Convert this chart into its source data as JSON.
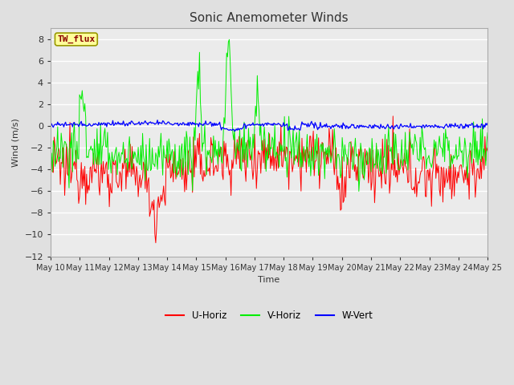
{
  "title": "Sonic Anemometer Winds",
  "xlabel": "Time",
  "ylabel": "Wind (m/s)",
  "ylim": [
    -12,
    9
  ],
  "yticks": [
    -12,
    -10,
    -8,
    -6,
    -4,
    -2,
    0,
    2,
    4,
    6,
    8
  ],
  "xtick_labels": [
    "May 10",
    "May 11",
    "May 12",
    "May 13",
    "May 14",
    "May 15",
    "May 16",
    "May 17",
    "May 18",
    "May 19",
    "May 20",
    "May 21",
    "May 22",
    "May 23",
    "May 24",
    "May 25"
  ],
  "colors": {
    "U": "#ff0000",
    "V": "#00ee00",
    "W": "#0000ff",
    "bg_outer": "#e0e0e0",
    "bg_inner": "#ebebeb",
    "grid": "#ffffff"
  },
  "legend_labels": [
    "U-Horiz",
    "V-Horiz",
    "W-Vert"
  ],
  "station_label": "TW_flux",
  "station_label_color": "#8b0000",
  "station_box_color": "#ffff99",
  "station_box_edge": "#999900"
}
